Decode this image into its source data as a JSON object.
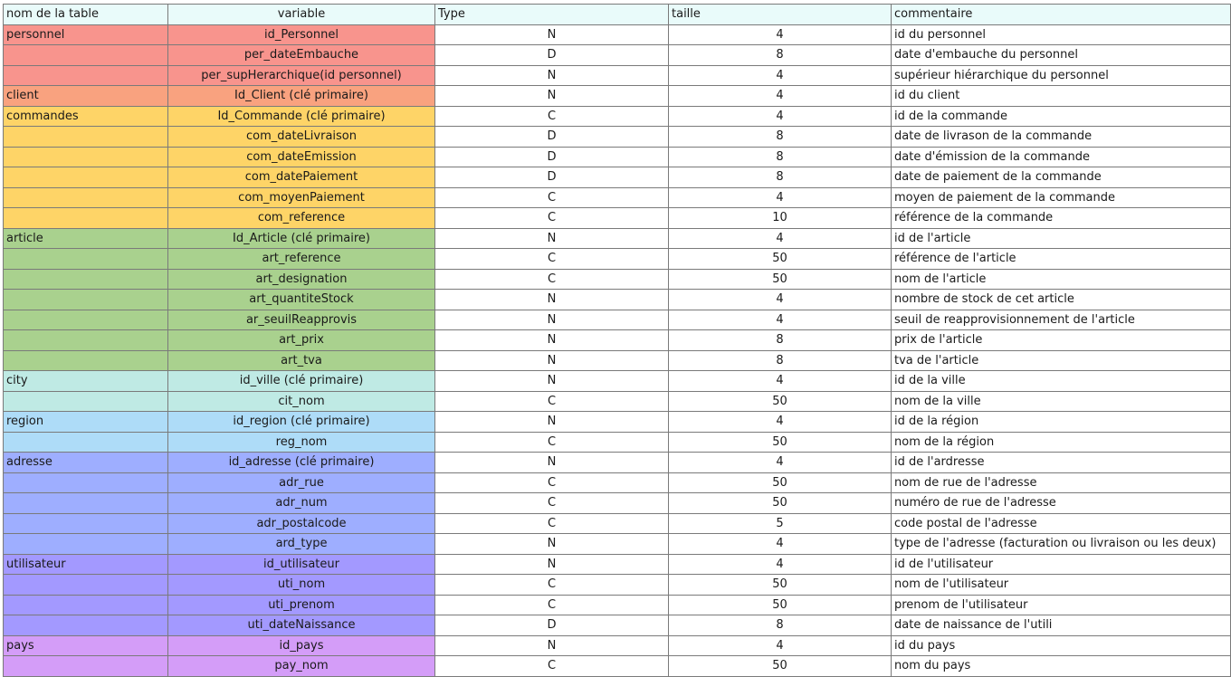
{
  "headers": {
    "table_name": "nom de la table",
    "variable": "variable",
    "type": "Type",
    "size": "taille",
    "comment": "commentaire"
  },
  "colors": {
    "header": "#e9fbfa",
    "personnel": "#f8948d",
    "client": "#f9a27f",
    "commandes": "#fed467",
    "article": "#a9d18e",
    "city": "#bfeae4",
    "region": "#aedcf8",
    "adresse": "#9eaeff",
    "utilisateur": "#a399ff",
    "pays": "#d49df8"
  },
  "rows": [
    {
      "group": "personnel",
      "table": "personnel",
      "variable": "id_Personnel",
      "type": "N",
      "size": "4",
      "comment": "id du personnel"
    },
    {
      "group": "personnel",
      "table": "",
      "variable": "per_dateEmbauche",
      "type": "D",
      "size": "8",
      "comment": "date d'embauche du personnel"
    },
    {
      "group": "personnel",
      "table": "",
      "variable": "per_supHerarchique(id personnel)",
      "type": "N",
      "size": "4",
      "comment": "supérieur hiérarchique du personnel"
    },
    {
      "group": "client",
      "table": "client",
      "variable": "Id_Client (clé primaire)",
      "type": "N",
      "size": "4",
      "comment": "id du client"
    },
    {
      "group": "commandes",
      "table": "commandes",
      "variable": "Id_Commande (clé primaire)",
      "type": "C",
      "size": "4",
      "comment": "id de la commande"
    },
    {
      "group": "commandes",
      "table": "",
      "variable": "com_dateLivraison",
      "type": "D",
      "size": "8",
      "comment": "date de livrason de la commande"
    },
    {
      "group": "commandes",
      "table": "",
      "variable": "com_dateEmission",
      "type": "D",
      "size": "8",
      "comment": "date d'émission de la commande"
    },
    {
      "group": "commandes",
      "table": "",
      "variable": "com_datePaiement",
      "type": "D",
      "size": "8",
      "comment": "date de paiement de la commande"
    },
    {
      "group": "commandes",
      "table": "",
      "variable": "com_moyenPaiement",
      "type": "C",
      "size": "4",
      "comment": "moyen de paiement de la commande"
    },
    {
      "group": "commandes",
      "table": "",
      "variable": "com_reference",
      "type": "C",
      "size": "10",
      "comment": "référence de la commande"
    },
    {
      "group": "article",
      "table": "article",
      "variable": "Id_Article (clé primaire)",
      "type": "N",
      "size": "4",
      "comment": "id de l'article"
    },
    {
      "group": "article",
      "table": "",
      "variable": "art_reference",
      "type": "C",
      "size": "50",
      "comment": "référence de l'article"
    },
    {
      "group": "article",
      "table": "",
      "variable": "art_designation",
      "type": "C",
      "size": "50",
      "comment": "nom de l'article"
    },
    {
      "group": "article",
      "table": "",
      "variable": "art_quantiteStock",
      "type": "N",
      "size": "4",
      "comment": "nombre de stock de cet article"
    },
    {
      "group": "article",
      "table": "",
      "variable": "ar_seuilReapprovis",
      "type": "N",
      "size": "4",
      "comment": "seuil de reapprovisionnement de l'article"
    },
    {
      "group": "article",
      "table": "",
      "variable": "art_prix",
      "type": "N",
      "size": "8",
      "comment": "prix de l'article"
    },
    {
      "group": "article",
      "table": "",
      "variable": "art_tva",
      "type": "N",
      "size": "8",
      "comment": "tva de l'article"
    },
    {
      "group": "city",
      "table": "city",
      "variable": "id_ville (clé primaire)",
      "type": "N",
      "size": "4",
      "comment": "id de la ville"
    },
    {
      "group": "city",
      "table": "",
      "variable": "cit_nom",
      "type": "C",
      "size": "50",
      "comment": "nom de la ville"
    },
    {
      "group": "region",
      "table": "region",
      "variable": "id_region  (clé primaire)",
      "type": "N",
      "size": "4",
      "comment": "id de la région"
    },
    {
      "group": "region",
      "table": "",
      "variable": "reg_nom",
      "type": "C",
      "size": "50",
      "comment": "nom de la région"
    },
    {
      "group": "adresse",
      "table": "adresse",
      "variable": "id_adresse  (clé primaire)",
      "type": "N",
      "size": "4",
      "comment": "id de l'ardresse"
    },
    {
      "group": "adresse",
      "table": "",
      "variable": "adr_rue",
      "type": "C",
      "size": "50",
      "comment": "nom de rue de l'adresse"
    },
    {
      "group": "adresse",
      "table": "",
      "variable": "adr_num",
      "type": "C",
      "size": "50",
      "comment": "numéro de rue de l'adresse"
    },
    {
      "group": "adresse",
      "table": "",
      "variable": "adr_postalcode",
      "type": "C",
      "size": "5",
      "comment": "code postal de l'adresse"
    },
    {
      "group": "adresse",
      "table": "",
      "variable": "ard_type",
      "type": "N",
      "size": "4",
      "comment": "type de l'adresse (facturation ou livraison ou les deux)"
    },
    {
      "group": "utilisateur",
      "table": "utilisateur",
      "variable": "id_utilisateur",
      "type": "N",
      "size": "4",
      "comment": "id de l'utilisateur"
    },
    {
      "group": "utilisateur",
      "table": "",
      "variable": "uti_nom",
      "type": "C",
      "size": "50",
      "comment": "nom de l'utilisateur"
    },
    {
      "group": "utilisateur",
      "table": "",
      "variable": "uti_prenom",
      "type": "C",
      "size": "50",
      "comment": "prenom de l'utilisateur"
    },
    {
      "group": "utilisateur",
      "table": "",
      "variable": "uti_dateNaissance",
      "type": "D",
      "size": "8",
      "comment": "date de naissance de l'utili"
    },
    {
      "group": "pays",
      "table": "pays",
      "variable": "id_pays",
      "type": "N",
      "size": "4",
      "comment": "id du pays"
    },
    {
      "group": "pays",
      "table": "",
      "variable": "pay_nom",
      "type": "C",
      "size": "50",
      "comment": "nom du pays"
    }
  ]
}
